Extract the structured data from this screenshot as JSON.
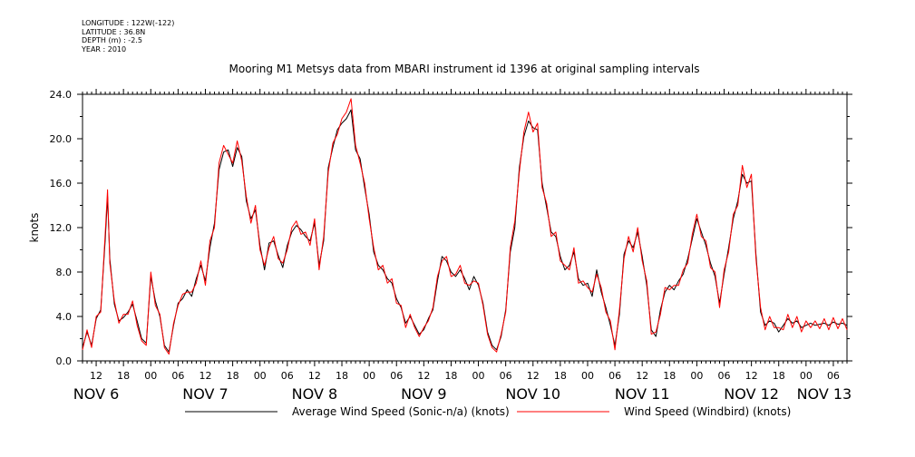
{
  "metadata": {
    "longitude": "LONGITUDE : 122W(-122)",
    "latitude": "LATITUDE : 36.8N",
    "depth": "DEPTH (m) : -2.5",
    "year": "YEAR : 2010"
  },
  "chart_data": {
    "type": "line",
    "title": "Mooring M1 Metsys data from MBARI instrument id 1396 at original sampling intervals",
    "ylabel": "knots",
    "ylim": [
      0,
      24
    ],
    "yticks": [
      "0.0",
      "4.0",
      "8.0",
      "12.0",
      "16.0",
      "20.0",
      "24.0"
    ],
    "xlim_hours": [
      0,
      168
    ],
    "hour_ticks": [
      {
        "t": 3,
        "label": "12"
      },
      {
        "t": 9,
        "label": "18"
      },
      {
        "t": 15,
        "label": "00"
      },
      {
        "t": 21,
        "label": "06"
      },
      {
        "t": 27,
        "label": "12"
      },
      {
        "t": 33,
        "label": "18"
      },
      {
        "t": 39,
        "label": "00"
      },
      {
        "t": 45,
        "label": "06"
      },
      {
        "t": 51,
        "label": "12"
      },
      {
        "t": 57,
        "label": "18"
      },
      {
        "t": 63,
        "label": "00"
      },
      {
        "t": 69,
        "label": "06"
      },
      {
        "t": 75,
        "label": "12"
      },
      {
        "t": 81,
        "label": "18"
      },
      {
        "t": 87,
        "label": "00"
      },
      {
        "t": 93,
        "label": "06"
      },
      {
        "t": 99,
        "label": "12"
      },
      {
        "t": 105,
        "label": "18"
      },
      {
        "t": 111,
        "label": "00"
      },
      {
        "t": 117,
        "label": "06"
      },
      {
        "t": 123,
        "label": "12"
      },
      {
        "t": 129,
        "label": "18"
      },
      {
        "t": 135,
        "label": "00"
      },
      {
        "t": 141,
        "label": "06"
      },
      {
        "t": 147,
        "label": "12"
      },
      {
        "t": 153,
        "label": "18"
      },
      {
        "t": 159,
        "label": "00"
      },
      {
        "t": 165,
        "label": "06"
      }
    ],
    "day_labels": [
      {
        "t": 3,
        "label": "NOV 6"
      },
      {
        "t": 27,
        "label": "NOV 7"
      },
      {
        "t": 51,
        "label": "NOV 8"
      },
      {
        "t": 75,
        "label": "NOV 9"
      },
      {
        "t": 99,
        "label": "NOV 10"
      },
      {
        "t": 123,
        "label": "NOV 11"
      },
      {
        "t": 147,
        "label": "NOV 12"
      },
      {
        "t": 163,
        "label": "NOV 13"
      }
    ],
    "series": [
      {
        "name": "Average Wind Speed (Sonic-n/a) (knots)",
        "color": "#000000",
        "x": [
          0,
          1,
          2,
          3,
          4,
          5,
          5.5,
          6,
          7,
          8,
          9,
          10,
          11,
          12,
          13,
          14,
          15,
          16,
          17,
          18,
          19,
          20,
          21,
          22,
          23,
          24,
          25,
          26,
          27,
          28,
          29,
          30,
          31,
          32,
          33,
          34,
          35,
          36,
          37,
          38,
          39,
          40,
          41,
          42,
          43,
          44,
          45,
          46,
          47,
          48,
          49,
          50,
          51,
          52,
          53,
          54,
          55,
          56,
          57,
          58,
          59,
          60,
          61,
          62,
          63,
          64,
          65,
          66,
          67,
          68,
          69,
          70,
          71,
          72,
          73,
          74,
          75,
          76,
          77,
          78,
          79,
          80,
          81,
          82,
          83,
          84,
          85,
          86,
          87,
          88,
          89,
          90,
          91,
          92,
          93,
          94,
          95,
          96,
          97,
          98,
          99,
          100,
          101,
          102,
          103,
          104,
          105,
          106,
          107,
          108,
          109,
          110,
          111,
          112,
          113,
          114,
          115,
          116,
          117,
          118,
          119,
          120,
          121,
          122,
          123,
          124,
          125,
          126,
          127,
          128,
          129,
          130,
          131,
          132,
          133,
          134,
          135,
          136,
          137,
          138,
          139,
          140,
          141,
          142,
          143,
          144,
          145,
          146,
          147,
          148,
          149,
          150,
          151,
          152,
          153,
          154,
          155,
          156,
          157,
          158,
          159,
          160,
          161,
          162,
          163,
          164,
          165,
          166,
          167,
          168
        ],
        "values": [
          1.2,
          2.6,
          1.4,
          3.8,
          4.6,
          11.0,
          14.8,
          9.2,
          5.1,
          3.6,
          3.9,
          4.4,
          5.1,
          3.6,
          2.0,
          1.6,
          7.6,
          5.4,
          4.0,
          1.4,
          0.8,
          3.2,
          5.2,
          5.6,
          6.4,
          5.8,
          7.4,
          8.6,
          7.2,
          10.2,
          12.4,
          17.2,
          18.8,
          19.0,
          17.5,
          19.2,
          18.4,
          14.4,
          12.8,
          13.6,
          10.4,
          8.2,
          10.6,
          10.8,
          9.5,
          8.4,
          10.4,
          11.6,
          12.2,
          11.8,
          11.2,
          10.8,
          12.4,
          8.6,
          10.8,
          17.4,
          19.2,
          20.8,
          21.4,
          21.8,
          22.6,
          19.0,
          18.2,
          15.6,
          13.2,
          9.8,
          8.6,
          8.2,
          7.4,
          7.0,
          5.6,
          4.8,
          3.4,
          4.0,
          3.2,
          2.4,
          2.8,
          3.8,
          4.6,
          7.2,
          9.4,
          9.0,
          8.0,
          7.6,
          8.2,
          7.4,
          6.4,
          7.6,
          6.8,
          5.2,
          2.6,
          1.4,
          1.0,
          2.2,
          4.6,
          9.8,
          12.0,
          17.4,
          20.2,
          21.6,
          21.0,
          20.8,
          16.0,
          13.8,
          11.6,
          11.2,
          9.4,
          8.2,
          8.6,
          9.8,
          7.4,
          6.8,
          7.0,
          5.8,
          8.2,
          6.2,
          4.8,
          3.2,
          1.4,
          4.2,
          9.6,
          10.8,
          10.2,
          11.6,
          9.4,
          6.8,
          2.8,
          2.2,
          4.6,
          6.2,
          6.8,
          6.4,
          7.2,
          7.8,
          9.2,
          11.0,
          12.8,
          11.6,
          10.4,
          8.8,
          7.6,
          5.2,
          7.8,
          10.2,
          12.8,
          14.4,
          16.8,
          16.0,
          16.2,
          9.6,
          4.4,
          3.2,
          3.6,
          3.4,
          2.6,
          3.2,
          3.8,
          3.4,
          3.6,
          3.0,
          3.2,
          3.4,
          3.2,
          3.3,
          3.4,
          3.2,
          3.5,
          3.3,
          3.4,
          3.2
        ]
      },
      {
        "name": "Wind Speed (Windbird) (knots)",
        "color": "#ff0000",
        "x": [
          0,
          1,
          2,
          3,
          4,
          5,
          5.5,
          6,
          7,
          8,
          9,
          10,
          11,
          12,
          13,
          14,
          15,
          16,
          17,
          18,
          19,
          20,
          21,
          22,
          23,
          24,
          25,
          26,
          27,
          28,
          29,
          30,
          31,
          32,
          33,
          34,
          35,
          36,
          37,
          38,
          39,
          40,
          41,
          42,
          43,
          44,
          45,
          46,
          47,
          48,
          49,
          50,
          51,
          52,
          53,
          54,
          55,
          56,
          57,
          58,
          59,
          60,
          61,
          62,
          63,
          64,
          65,
          66,
          67,
          68,
          69,
          70,
          71,
          72,
          73,
          74,
          75,
          76,
          77,
          78,
          79,
          80,
          81,
          82,
          83,
          84,
          85,
          86,
          87,
          88,
          89,
          90,
          91,
          92,
          93,
          94,
          95,
          96,
          97,
          98,
          99,
          100,
          101,
          102,
          103,
          104,
          105,
          106,
          107,
          108,
          109,
          110,
          111,
          112,
          113,
          114,
          115,
          116,
          117,
          118,
          119,
          120,
          121,
          122,
          123,
          124,
          125,
          126,
          127,
          128,
          129,
          130,
          131,
          132,
          133,
          134,
          135,
          136,
          137,
          138,
          139,
          140,
          141,
          142,
          143,
          144,
          145,
          146,
          147,
          148,
          149,
          150,
          151,
          152,
          153,
          154,
          155,
          156,
          157,
          158,
          159,
          160,
          161,
          162,
          163,
          164,
          165,
          166,
          167,
          168
        ],
        "values": [
          1.0,
          2.8,
          1.2,
          4.0,
          4.4,
          11.6,
          15.4,
          8.8,
          5.4,
          3.4,
          4.2,
          4.2,
          5.4,
          3.2,
          1.8,
          1.4,
          8.0,
          5.0,
          4.2,
          1.2,
          0.6,
          3.4,
          5.0,
          6.0,
          6.2,
          6.2,
          7.0,
          9.0,
          6.8,
          10.8,
          12.0,
          17.8,
          19.4,
          18.6,
          17.8,
          19.8,
          18.0,
          14.8,
          12.4,
          14.0,
          10.0,
          8.6,
          10.2,
          11.2,
          9.2,
          8.8,
          10.0,
          12.0,
          12.6,
          11.4,
          11.6,
          10.4,
          12.8,
          8.2,
          11.2,
          17.0,
          19.6,
          20.4,
          21.8,
          22.4,
          23.6,
          19.4,
          17.8,
          16.0,
          12.8,
          10.2,
          8.2,
          8.6,
          7.0,
          7.4,
          5.2,
          5.0,
          3.0,
          4.2,
          3.0,
          2.2,
          3.0,
          3.6,
          4.8,
          7.6,
          9.0,
          9.4,
          7.6,
          7.8,
          8.6,
          7.0,
          6.8,
          7.2,
          7.0,
          5.0,
          2.4,
          1.2,
          0.8,
          2.4,
          4.4,
          10.2,
          12.6,
          17.0,
          20.6,
          22.4,
          20.6,
          21.4,
          15.6,
          14.2,
          11.2,
          11.6,
          9.0,
          8.6,
          8.2,
          10.2,
          7.0,
          7.2,
          6.6,
          6.2,
          7.8,
          6.6,
          4.4,
          3.6,
          1.0,
          4.6,
          9.2,
          11.2,
          9.8,
          12.0,
          9.0,
          7.2,
          2.4,
          2.6,
          4.2,
          6.6,
          6.4,
          6.8,
          6.8,
          8.2,
          8.8,
          11.4,
          13.2,
          11.2,
          10.8,
          8.4,
          8.0,
          4.8,
          8.2,
          9.8,
          13.2,
          14.0,
          17.6,
          15.6,
          16.8,
          9.2,
          4.8,
          2.8,
          4.0,
          3.0,
          3.0,
          2.8,
          4.2,
          3.0,
          4.0,
          2.6,
          3.6,
          3.0,
          3.6,
          2.9,
          3.8,
          2.8,
          3.9,
          2.9,
          3.8,
          2.8
        ]
      }
    ]
  }
}
